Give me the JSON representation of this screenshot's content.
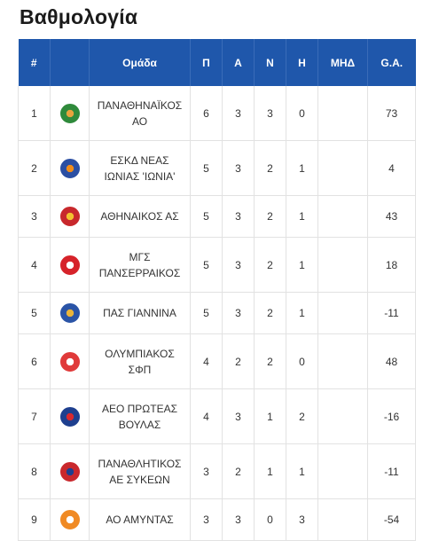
{
  "title": "Βαθμολογία",
  "headers": [
    "#",
    "",
    "Ομάδα",
    "Π",
    "Α",
    "Ν",
    "Η",
    "ΜΗΔ",
    "G.A."
  ],
  "rows": [
    {
      "pos": "1",
      "team": "ΠΑΝΑΘΗΝΑΪΚΟΣ ΑΟ",
      "p": "6",
      "a": "3",
      "n": "3",
      "h": "0",
      "mhd": "",
      "ga": "73",
      "logo_icon": "panathinaikos-logo-icon",
      "logo_color": "#2f8a3b",
      "logo_accent": "#e8a33d"
    },
    {
      "pos": "2",
      "team": "ΕΣΚΔ ΝΕΑΣ ΙΩΝΙΑΣ 'ΙΩΝΙΑ'",
      "p": "5",
      "a": "3",
      "n": "2",
      "h": "1",
      "mhd": "",
      "ga": "4",
      "logo_icon": "ionia-logo-icon",
      "logo_color": "#2b4fa3",
      "logo_accent": "#f08c1a"
    },
    {
      "pos": "3",
      "team": "ΑΘΗΝΑΙΚΟΣ ΑΣ",
      "p": "5",
      "a": "3",
      "n": "2",
      "h": "1",
      "mhd": "",
      "ga": "43",
      "logo_icon": "athinaikos-logo-icon",
      "logo_color": "#c8282c",
      "logo_accent": "#f2c230"
    },
    {
      "pos": "4",
      "team": "ΜΓΣ ΠΑΝΣΕΡΡΑΙΚΟΣ",
      "p": "5",
      "a": "3",
      "n": "2",
      "h": "1",
      "mhd": "",
      "ga": "18",
      "logo_icon": "panserraikos-logo-icon",
      "logo_color": "#d6232a",
      "logo_accent": "#ffffff"
    },
    {
      "pos": "5",
      "team": "ΠΑΣ ΓΙΑΝΝΙΝΑ",
      "p": "5",
      "a": "3",
      "n": "2",
      "h": "1",
      "mhd": "",
      "ga": "-11",
      "logo_icon": "pas-giannina-logo-icon",
      "logo_color": "#2a54a6",
      "logo_accent": "#e9b43a"
    },
    {
      "pos": "6",
      "team": "ΟΛΥΜΠΙΑΚΟΣ ΣΦΠ",
      "p": "4",
      "a": "2",
      "n": "2",
      "h": "0",
      "mhd": "",
      "ga": "48",
      "logo_icon": "olympiakos-logo-icon",
      "logo_color": "#e03a3a",
      "logo_accent": "#ffffff"
    },
    {
      "pos": "7",
      "team": "ΑΕΟ ΠΡΩΤΕΑΣ ΒΟΥΛΑΣ",
      "p": "4",
      "a": "3",
      "n": "1",
      "h": "2",
      "mhd": "",
      "ga": "-16",
      "logo_icon": "proteas-logo-icon",
      "logo_color": "#1e3f8f",
      "logo_accent": "#d8292f"
    },
    {
      "pos": "8",
      "team": "ΠΑΝΑΘΛΗΤΙΚΟΣ ΑΕ ΣΥΚΕΩΝ",
      "p": "3",
      "a": "2",
      "n": "1",
      "h": "1",
      "mhd": "",
      "ga": "-11",
      "logo_icon": "panathlitikos-logo-icon",
      "logo_color": "#c9282d",
      "logo_accent": "#1e3f8f"
    },
    {
      "pos": "9",
      "team": "ΑΟ ΑΜΥΝΤΑΣ",
      "p": "3",
      "a": "3",
      "n": "0",
      "h": "3",
      "mhd": "",
      "ga": "-54",
      "logo_icon": "amyntas-logo-icon",
      "logo_color": "#f08a24",
      "logo_accent": "#ffffff"
    }
  ]
}
